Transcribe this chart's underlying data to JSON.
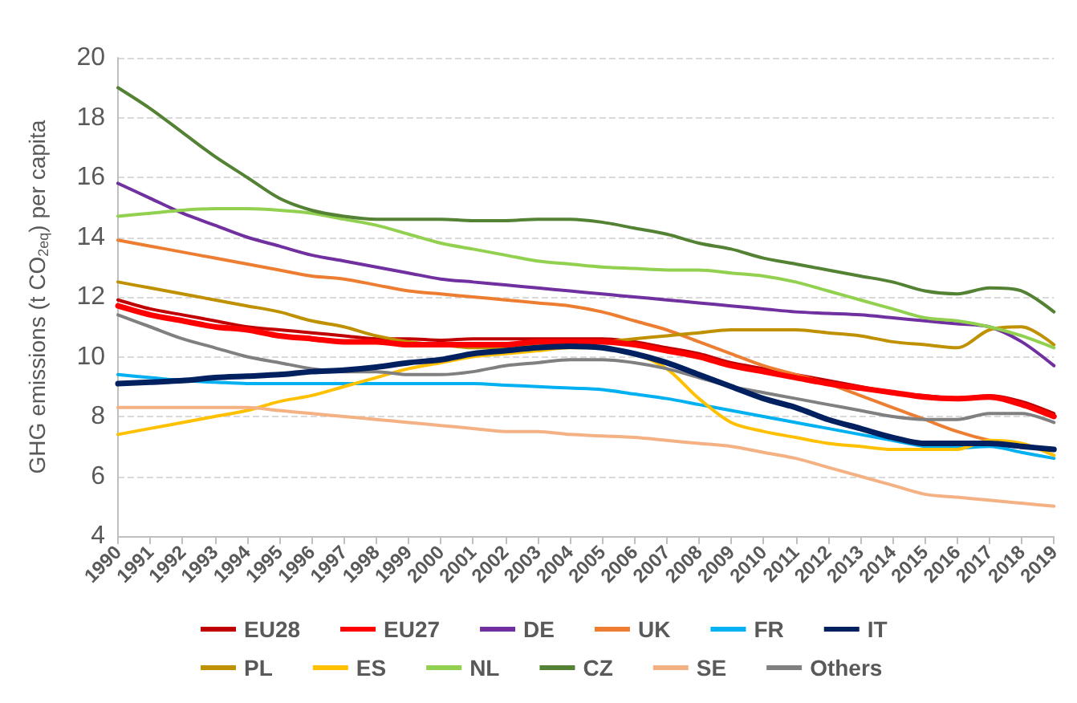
{
  "chart_data": {
    "type": "line",
    "ylabel": "GHG emissions (t CO$_{2eq}$) per capita",
    "categories": [
      "1990",
      "1991",
      "1992",
      "1993",
      "1994",
      "1995",
      "1996",
      "1997",
      "1998",
      "1999",
      "2000",
      "2001",
      "2002",
      "2003",
      "2004",
      "2005",
      "2006",
      "2007",
      "2008",
      "2009",
      "2010",
      "2011",
      "2012",
      "2013",
      "2014",
      "2015",
      "2016",
      "2017",
      "2018",
      "2019"
    ],
    "ylim": [
      4,
      20
    ],
    "yticks": [
      4,
      6,
      8,
      10,
      12,
      14,
      16,
      18,
      20
    ],
    "grid": "y",
    "legend": "bottom",
    "marker": "none",
    "line_style": "solid",
    "series": [
      {
        "name": "EU28",
        "color": "#c00000",
        "values": [
          11.9,
          11.6,
          11.4,
          11.2,
          11.0,
          10.9,
          10.8,
          10.7,
          10.6,
          10.6,
          10.55,
          10.6,
          10.6,
          10.6,
          10.6,
          10.6,
          10.5,
          10.3,
          10.1,
          9.8,
          9.6,
          9.4,
          9.2,
          9.0,
          8.8,
          8.7,
          8.6,
          8.7,
          8.5,
          8.1
        ]
      },
      {
        "name": "EU27",
        "color": "#ff0000",
        "values": [
          11.7,
          11.4,
          11.2,
          11.0,
          10.9,
          10.7,
          10.6,
          10.5,
          10.5,
          10.4,
          10.4,
          10.4,
          10.4,
          10.5,
          10.5,
          10.5,
          10.4,
          10.2,
          10.0,
          9.7,
          9.5,
          9.3,
          9.1,
          8.95,
          8.8,
          8.65,
          8.6,
          8.65,
          8.4,
          8.0
        ]
      },
      {
        "name": "DE",
        "color": "#7030a0",
        "values": [
          15.8,
          15.3,
          14.8,
          14.4,
          14.0,
          13.7,
          13.4,
          13.2,
          13.0,
          12.8,
          12.6,
          12.5,
          12.4,
          12.3,
          12.2,
          12.1,
          12.0,
          11.9,
          11.8,
          11.7,
          11.6,
          11.5,
          11.45,
          11.4,
          11.3,
          11.2,
          11.1,
          11.0,
          10.5,
          9.7
        ]
      },
      {
        "name": "UK",
        "color": "#ed7d31",
        "values": [
          13.9,
          13.7,
          13.5,
          13.3,
          13.1,
          12.9,
          12.7,
          12.6,
          12.4,
          12.2,
          12.1,
          12.0,
          11.9,
          11.8,
          11.7,
          11.5,
          11.2,
          10.9,
          10.5,
          10.1,
          9.7,
          9.4,
          9.1,
          8.7,
          8.3,
          7.9,
          7.5,
          7.2,
          7.0,
          6.9
        ]
      },
      {
        "name": "FR",
        "color": "#00b0f0",
        "values": [
          9.4,
          9.3,
          9.2,
          9.15,
          9.1,
          9.1,
          9.1,
          9.1,
          9.1,
          9.1,
          9.1,
          9.1,
          9.05,
          9.0,
          8.95,
          8.9,
          8.75,
          8.6,
          8.4,
          8.2,
          8.0,
          7.8,
          7.6,
          7.4,
          7.2,
          7.0,
          6.95,
          7.0,
          6.8,
          6.6
        ]
      },
      {
        "name": "IT",
        "color": "#002060",
        "values": [
          9.1,
          9.15,
          9.2,
          9.3,
          9.35,
          9.4,
          9.5,
          9.55,
          9.65,
          9.8,
          9.9,
          10.1,
          10.2,
          10.3,
          10.35,
          10.3,
          10.1,
          9.8,
          9.4,
          9.0,
          8.6,
          8.3,
          7.9,
          7.6,
          7.3,
          7.1,
          7.1,
          7.1,
          7.0,
          6.9
        ]
      },
      {
        "name": "PL",
        "color": "#bf9000",
        "values": [
          12.5,
          12.3,
          12.1,
          11.9,
          11.7,
          11.5,
          11.2,
          11.0,
          10.7,
          10.5,
          10.4,
          10.3,
          10.3,
          10.4,
          10.5,
          10.5,
          10.6,
          10.7,
          10.8,
          10.9,
          10.9,
          10.9,
          10.8,
          10.7,
          10.5,
          10.4,
          10.3,
          10.9,
          11.0,
          10.4
        ]
      },
      {
        "name": "ES",
        "color": "#ffc000",
        "values": [
          7.4,
          7.6,
          7.8,
          8.0,
          8.2,
          8.5,
          8.7,
          9.0,
          9.3,
          9.6,
          9.8,
          10.0,
          10.1,
          10.2,
          10.3,
          10.3,
          10.1,
          9.6,
          8.6,
          7.8,
          7.5,
          7.3,
          7.1,
          7.0,
          6.9,
          6.9,
          6.9,
          7.2,
          7.1,
          6.7
        ]
      },
      {
        "name": "NL",
        "color": "#92d050",
        "values": [
          14.7,
          14.8,
          14.9,
          14.95,
          14.95,
          14.9,
          14.8,
          14.6,
          14.4,
          14.1,
          13.8,
          13.6,
          13.4,
          13.2,
          13.1,
          13.0,
          12.95,
          12.9,
          12.9,
          12.8,
          12.7,
          12.5,
          12.2,
          11.9,
          11.6,
          11.3,
          11.2,
          11.0,
          10.7,
          10.3
        ]
      },
      {
        "name": "CZ",
        "color": "#548235",
        "values": [
          19.0,
          18.3,
          17.5,
          16.7,
          16.0,
          15.3,
          14.9,
          14.7,
          14.6,
          14.6,
          14.6,
          14.55,
          14.55,
          14.6,
          14.6,
          14.5,
          14.3,
          14.1,
          13.8,
          13.6,
          13.3,
          13.1,
          12.9,
          12.7,
          12.5,
          12.2,
          12.1,
          12.3,
          12.2,
          11.5
        ]
      },
      {
        "name": "SE",
        "color": "#f4b183",
        "values": [
          8.3,
          8.3,
          8.3,
          8.3,
          8.3,
          8.2,
          8.1,
          8.0,
          7.9,
          7.8,
          7.7,
          7.6,
          7.5,
          7.5,
          7.4,
          7.35,
          7.3,
          7.2,
          7.1,
          7.0,
          6.8,
          6.6,
          6.3,
          6.0,
          5.7,
          5.4,
          5.3,
          5.2,
          5.1,
          5.0
        ]
      },
      {
        "name": "Others",
        "color": "#808080",
        "values": [
          11.4,
          11.0,
          10.6,
          10.3,
          10.0,
          9.8,
          9.6,
          9.5,
          9.5,
          9.4,
          9.4,
          9.5,
          9.7,
          9.8,
          9.9,
          9.9,
          9.8,
          9.6,
          9.3,
          9.0,
          8.8,
          8.6,
          8.4,
          8.2,
          8.0,
          7.9,
          7.9,
          8.1,
          8.1,
          7.8
        ]
      }
    ]
  }
}
